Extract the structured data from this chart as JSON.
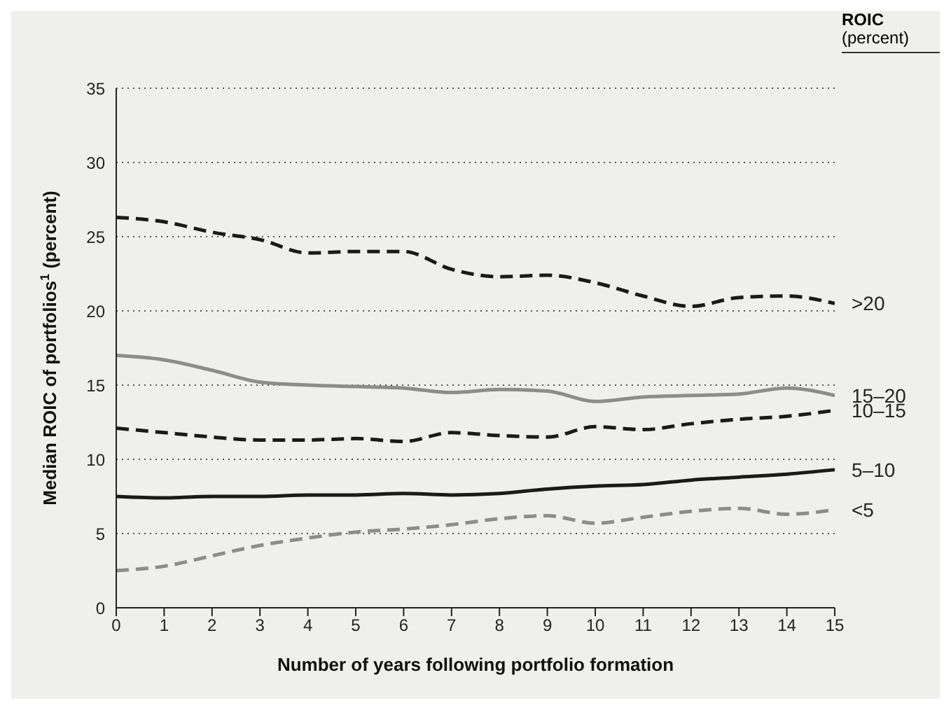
{
  "chart_data": {
    "type": "line",
    "xlabel": "Number of years following portfolio formation",
    "ylabel": "Median ROIC of portfolios$^{1}$ (percent)",
    "legend_title": "ROIC (percent)",
    "x": [
      0,
      1,
      2,
      3,
      4,
      5,
      6,
      7,
      8,
      9,
      10,
      11,
      12,
      13,
      14,
      15
    ],
    "xlim": [
      0,
      15
    ],
    "xticks": [
      0,
      1,
      2,
      3,
      4,
      5,
      6,
      7,
      8,
      9,
      10,
      11,
      12,
      13,
      14,
      15
    ],
    "ylim": [
      0,
      35
    ],
    "yticks": [
      0,
      5,
      10,
      15,
      20,
      25,
      30,
      35
    ],
    "grid": "y",
    "legend": false,
    "series": [
      {
        "name": ">20",
        "color": "#1a1a1a",
        "line_style": "dashed",
        "values": [
          26.3,
          26,
          25.3,
          24.8,
          23.9,
          24,
          24,
          22.8,
          22.3,
          22.4,
          21.9,
          21,
          20.3,
          20.9,
          21,
          20.5
        ]
      },
      {
        "name": "15–20",
        "color": "#8c8c8c",
        "line_style": "solid",
        "values": [
          17,
          16.7,
          16,
          15.2,
          15,
          14.9,
          14.8,
          14.5,
          14.7,
          14.6,
          13.9,
          14.2,
          14.3,
          14.4,
          14.8,
          14.3
        ]
      },
      {
        "name": "10–15",
        "color": "#1a1a1a",
        "line_style": "dashed",
        "values": [
          12.1,
          11.8,
          11.5,
          11.3,
          11.3,
          11.4,
          11.2,
          11.8,
          11.6,
          11.5,
          12.2,
          12,
          12.4,
          12.7,
          12.9,
          13.3
        ]
      },
      {
        "name": "5–10",
        "color": "#1a1a1a",
        "line_style": "solid",
        "values": [
          7.5,
          7.4,
          7.5,
          7.5,
          7.6,
          7.6,
          7.7,
          7.6,
          7.7,
          8,
          8.2,
          8.3,
          8.6,
          8.8,
          9,
          9.3
        ]
      },
      {
        "name": "<5",
        "color": "#8c8c8c",
        "line_style": "dashed",
        "values": [
          2.5,
          2.8,
          3.5,
          4.2,
          4.7,
          5.1,
          5.3,
          5.6,
          6,
          6.2,
          5.7,
          6.1,
          6.5,
          6.7,
          6.3,
          6.6
        ]
      }
    ]
  }
}
